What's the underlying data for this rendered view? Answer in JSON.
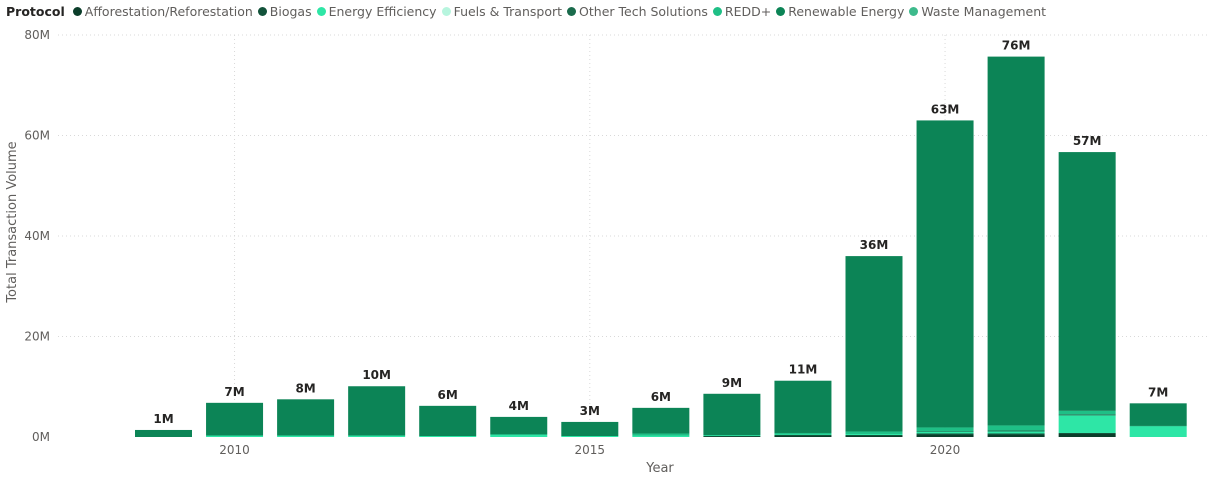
{
  "legend": {
    "title": "Protocol"
  },
  "chart_data": {
    "type": "bar",
    "stacked": true,
    "xlabel": "Year",
    "ylabel": "Total Transaction Volume",
    "ylim": [
      0,
      80000000
    ],
    "y_ticks": [
      {
        "value": 0,
        "label": "0M"
      },
      {
        "value": 20000000,
        "label": "20M"
      },
      {
        "value": 40000000,
        "label": "40M"
      },
      {
        "value": 60000000,
        "label": "60M"
      },
      {
        "value": 80000000,
        "label": "80M"
      }
    ],
    "x_ticks": [
      {
        "year": 2010,
        "label": "2010"
      },
      {
        "year": 2015,
        "label": "2015"
      },
      {
        "year": 2020,
        "label": "2020"
      }
    ],
    "categories": [
      2009,
      2010,
      2011,
      2012,
      2013,
      2014,
      2015,
      2016,
      2017,
      2018,
      2019,
      2020,
      2021,
      2022,
      2023
    ],
    "totals": [
      1400000,
      6800000,
      7500000,
      10100000,
      6200000,
      4000000,
      3000000,
      5800000,
      8600000,
      11200000,
      36000000,
      63000000,
      75700000,
      56700000,
      6700000
    ],
    "total_labels": [
      "1M",
      "7M",
      "8M",
      "10M",
      "6M",
      "4M",
      "3M",
      "6M",
      "9M",
      "11M",
      "36M",
      "63M",
      "76M",
      "57M",
      "7M"
    ],
    "series": [
      {
        "name": "Afforestation/Reforestation",
        "color": "#0b3d2a",
        "values": [
          0,
          0,
          0,
          0,
          0,
          0,
          0,
          0,
          0,
          200000,
          200000,
          400000,
          400000,
          600000,
          0
        ]
      },
      {
        "name": "Biogas",
        "color": "#12523a",
        "values": [
          0,
          0,
          0,
          0,
          0,
          0,
          0,
          0,
          200000,
          200000,
          200000,
          300000,
          300000,
          200000,
          0
        ]
      },
      {
        "name": "Energy Efficiency",
        "color": "#2ee6a6",
        "values": [
          0,
          300000,
          300000,
          300000,
          200000,
          500000,
          200000,
          300000,
          100000,
          100000,
          200000,
          300000,
          400000,
          3500000,
          2100000
        ]
      },
      {
        "name": "Fuels & Transport",
        "color": "#b7f5de",
        "values": [
          0,
          0,
          0,
          0,
          0,
          0,
          0,
          0,
          0,
          0,
          0,
          0,
          0,
          0,
          0
        ]
      },
      {
        "name": "Other Tech Solutions",
        "color": "#1a6b4c",
        "values": [
          0,
          0,
          0,
          0,
          0,
          0,
          0,
          0,
          0,
          0,
          0,
          100000,
          200000,
          200000,
          0
        ]
      },
      {
        "name": "REDD+",
        "color": "#1fbf86",
        "values": [
          0,
          0,
          0,
          0,
          0,
          0,
          0,
          400000,
          100000,
          300000,
          500000,
          800000,
          1000000,
          700000,
          100000
        ]
      },
      {
        "name": "Renewable Energy",
        "color": "#0c8456",
        "values": [
          1400000,
          6500000,
          7200000,
          9800000,
          6000000,
          3500000,
          2800000,
          5100000,
          8200000,
          10400000,
          34900000,
          61100000,
          73400000,
          51500000,
          4500000
        ]
      },
      {
        "name": "Waste Management",
        "color": "#3dba8c",
        "values": [
          0,
          0,
          0,
          0,
          0,
          0,
          0,
          0,
          0,
          0,
          0,
          0,
          0,
          0,
          0
        ]
      }
    ]
  }
}
